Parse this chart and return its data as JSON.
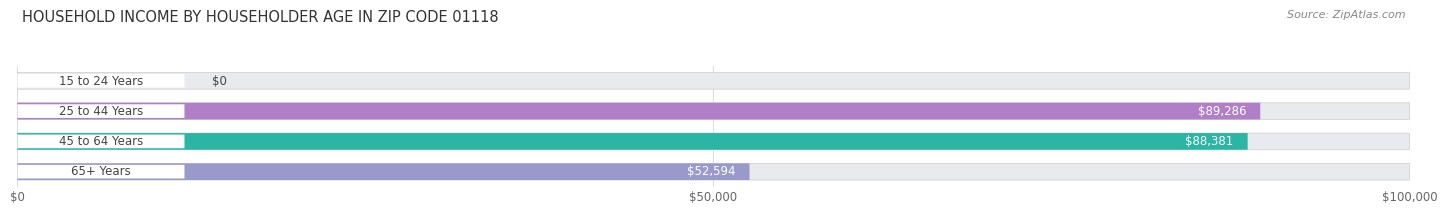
{
  "title": "HOUSEHOLD INCOME BY HOUSEHOLDER AGE IN ZIP CODE 01118",
  "source": "Source: ZipAtlas.com",
  "categories": [
    "15 to 24 Years",
    "25 to 44 Years",
    "45 to 64 Years",
    "65+ Years"
  ],
  "values": [
    0,
    89286,
    88381,
    52594
  ],
  "value_labels": [
    "$0",
    "$89,286",
    "$88,381",
    "$52,594"
  ],
  "bar_colors": [
    "#a8c8e8",
    "#b07fc7",
    "#2ab5a5",
    "#9999cc"
  ],
  "xmax": 100000,
  "xticks": [
    0,
    50000,
    100000
  ],
  "xtick_labels": [
    "$0",
    "$50,000",
    "$100,000"
  ],
  "background_color": "#ffffff",
  "bar_bg_color": "#e8eaee",
  "label_bg_color": "#ffffff",
  "grid_color": "#dddddd",
  "text_color": "#444444",
  "value_text_color": "#ffffff",
  "source_color": "#888888"
}
